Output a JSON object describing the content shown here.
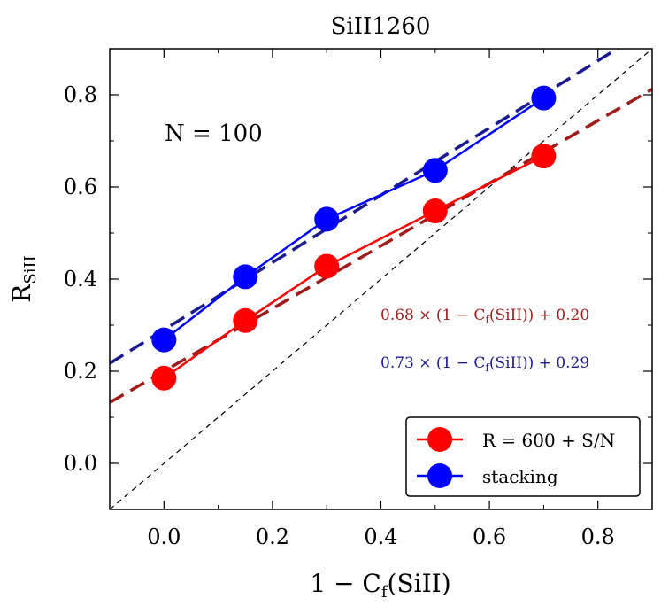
{
  "chart_data": {
    "type": "line",
    "title": "SiII1260",
    "xlabel": "1 − C",
    "xlabel_sub": "f",
    "xlabel_suffix": "(SiII)",
    "ylabel": "R",
    "ylabel_sub": "SiII",
    "xlim": [
      -0.1,
      0.9
    ],
    "ylim": [
      -0.1,
      0.9
    ],
    "xticks": [
      0.0,
      0.2,
      0.4,
      0.6,
      0.8
    ],
    "xtick_labels": [
      "0.0",
      "0.2",
      "0.4",
      "0.6",
      "0.8"
    ],
    "yticks": [
      0.0,
      0.2,
      0.4,
      0.6,
      0.8
    ],
    "ytick_labels": [
      "0.0",
      "0.2",
      "0.4",
      "0.6",
      "0.8"
    ],
    "x_minor_ticks": [
      -0.1,
      0.1,
      0.3,
      0.5,
      0.7,
      0.9
    ],
    "y_minor_ticks": [
      -0.1,
      0.1,
      0.3,
      0.5,
      0.7,
      0.9
    ],
    "series": [
      {
        "name": "R = 600 + S/N",
        "color": "#ff0000",
        "x": [
          0.0,
          0.15,
          0.3,
          0.5,
          0.7
        ],
        "y": [
          0.185,
          0.31,
          0.428,
          0.548,
          0.667
        ]
      },
      {
        "name": "stacking",
        "color": "#0000ff",
        "x": [
          0.0,
          0.15,
          0.3,
          0.5,
          0.7
        ],
        "y": [
          0.268,
          0.405,
          0.53,
          0.636,
          0.793
        ]
      }
    ],
    "fits": [
      {
        "name": "red-fit",
        "slope": 0.68,
        "intercept": 0.2,
        "color": "#a01c1c",
        "label": "0.68 × (1 − C",
        "label_sub": "f",
        "label_suffix": "(SiII)) + 0.20"
      },
      {
        "name": "blue-fit",
        "slope": 0.73,
        "intercept": 0.29,
        "color": "#1b1b8f",
        "label": "0.73 × (1 − C",
        "label_sub": "f",
        "label_suffix": "(SiII)) + 0.29"
      }
    ],
    "reference_line": {
      "slope": 1,
      "intercept": 0,
      "style": "dashed",
      "color": "#000000"
    },
    "annotation": "N = 100",
    "legend": {
      "placement": "bottom-right",
      "entries": [
        "R = 600 + S/N",
        "stacking"
      ]
    }
  }
}
